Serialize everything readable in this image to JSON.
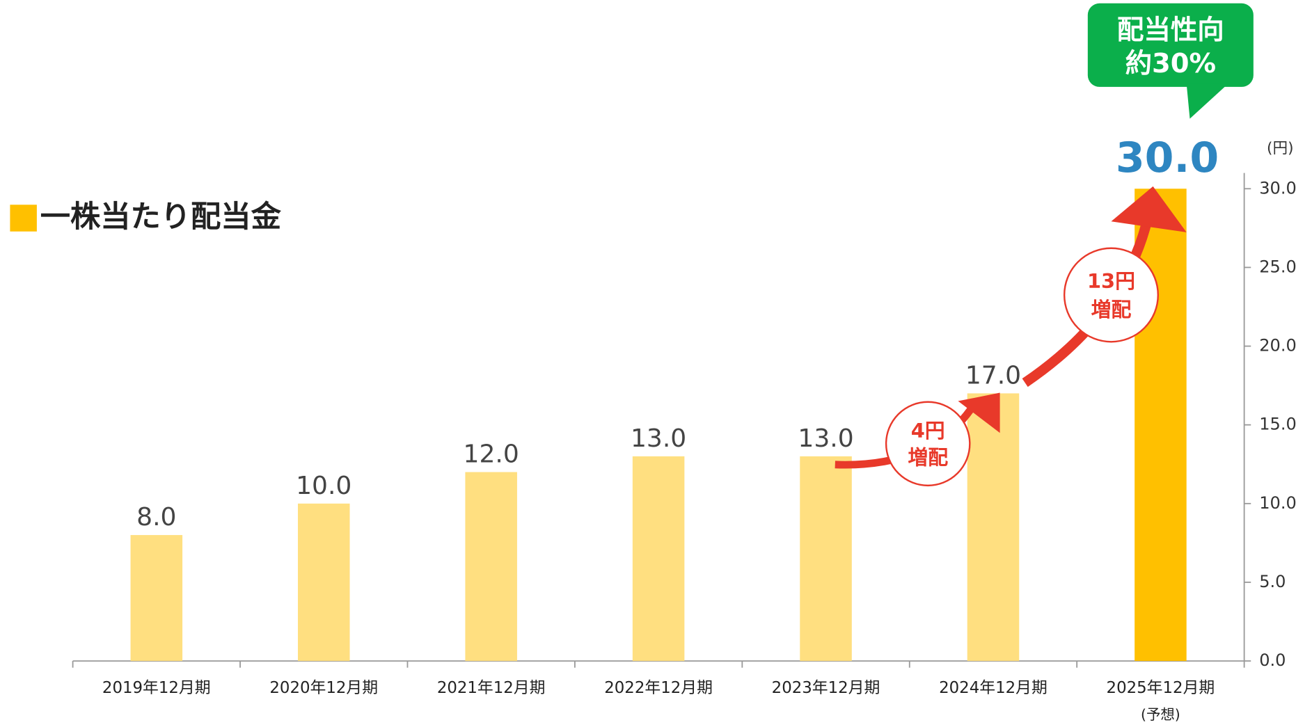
{
  "chart_data": {
    "type": "bar",
    "title": "一株当たり配当金",
    "unit": "(円)",
    "categories": [
      "2019年12月期",
      "2020年12月期",
      "2021年12月期",
      "2022年12月期",
      "2023年12月期",
      "2024年12月期",
      "2025年12月期"
    ],
    "category_notes": [
      null,
      null,
      null,
      null,
      null,
      null,
      "(予想)"
    ],
    "values": [
      8,
      10,
      12,
      13,
      13,
      17,
      30
    ],
    "value_labels": [
      "8.0",
      "10.0",
      "12.0",
      "13.0",
      "13.0",
      "17.0",
      "30.0"
    ],
    "colors": [
      "#FFDF80",
      "#FFDF80",
      "#FFDF80",
      "#FFDF80",
      "#FFDF80",
      "#FFDF80",
      "#FFC000"
    ],
    "label_colors": [
      "#444444",
      "#444444",
      "#444444",
      "#444444",
      "#444444",
      "#444444",
      "#2E86C1"
    ],
    "ylim": [
      0,
      31
    ],
    "yticks": [
      {
        "value": 0,
        "label": "0.0"
      },
      {
        "value": 5,
        "label": "5.0"
      },
      {
        "value": 10,
        "label": "10.0"
      },
      {
        "value": 15,
        "label": "15.0"
      },
      {
        "value": 20,
        "label": "20.0"
      },
      {
        "value": 25,
        "label": "25.0"
      },
      {
        "value": 30,
        "label": "30.0"
      }
    ],
    "annotations": [
      [
        "4円",
        "増配"
      ],
      [
        "13円",
        "増配"
      ],
      [
        "配当性向",
        "約30%"
      ]
    ]
  }
}
